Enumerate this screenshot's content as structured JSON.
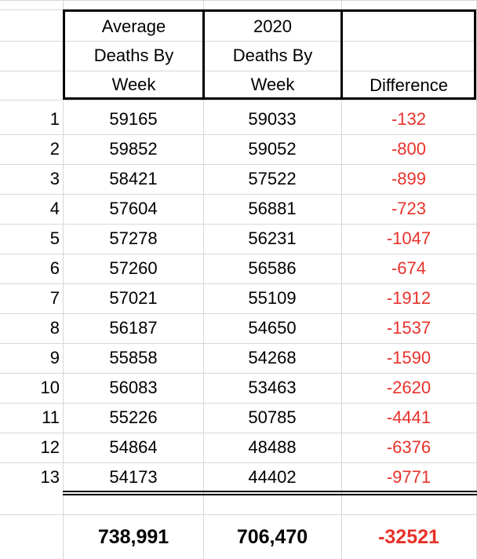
{
  "headers": {
    "avg": [
      "Average",
      "Deaths By",
      "Week"
    ],
    "y2020": [
      "2020",
      "Deaths By",
      "Week"
    ],
    "diff": "Difference"
  },
  "rows": [
    {
      "week": "1",
      "avg": "59165",
      "y2020": "59033",
      "diff": "-132"
    },
    {
      "week": "2",
      "avg": "59852",
      "y2020": "59052",
      "diff": "-800"
    },
    {
      "week": "3",
      "avg": "58421",
      "y2020": "57522",
      "diff": "-899"
    },
    {
      "week": "4",
      "avg": "57604",
      "y2020": "56881",
      "diff": "-723"
    },
    {
      "week": "5",
      "avg": "57278",
      "y2020": "56231",
      "diff": "-1047"
    },
    {
      "week": "6",
      "avg": "57260",
      "y2020": "56586",
      "diff": "-674"
    },
    {
      "week": "7",
      "avg": "57021",
      "y2020": "55109",
      "diff": "-1912"
    },
    {
      "week": "8",
      "avg": "56187",
      "y2020": "54650",
      "diff": "-1537"
    },
    {
      "week": "9",
      "avg": "55858",
      "y2020": "54268",
      "diff": "-1590"
    },
    {
      "week": "10",
      "avg": "56083",
      "y2020": "53463",
      "diff": "-2620"
    },
    {
      "week": "11",
      "avg": "55226",
      "y2020": "50785",
      "diff": "-4441"
    },
    {
      "week": "12",
      "avg": "54864",
      "y2020": "48488",
      "diff": "-6376"
    },
    {
      "week": "13",
      "avg": "54173",
      "y2020": "44402",
      "diff": "-9771"
    }
  ],
  "totals": {
    "avg": "738,991",
    "y2020": "706,470",
    "diff": "-32521"
  },
  "colors": {
    "negative": "#e8322a",
    "grid": "#d8d8d8",
    "border": "#000000"
  }
}
